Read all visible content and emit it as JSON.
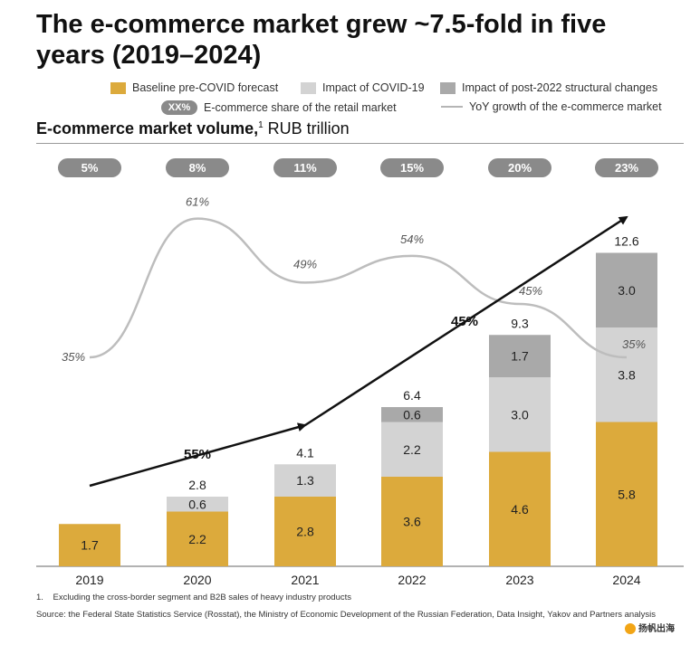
{
  "title": "The e-commerce market grew ~7.5-fold in five years (2019–2024)",
  "legend": {
    "baseline": "Baseline pre-COVID forecast",
    "covid": "Impact of COVID-19",
    "structural": "Impact of post-2022 structural changes",
    "share_marker": "XX%",
    "share": "E-commerce share of the retail market",
    "yoy": "YoY growth of the e-commerce market"
  },
  "subtitle": {
    "bold": "E-commerce market volume,",
    "sup": "1",
    "rest": " RUB trillion"
  },
  "colors": {
    "baseline": "#dcaa3c",
    "covid": "#d3d3d3",
    "structural": "#a9a9a9",
    "pill": "#8a8a8a",
    "yoy_line": "#bdbdbd",
    "arrow": "#111111"
  },
  "chart_data": {
    "type": "bar",
    "stacked": true,
    "categories": [
      "2019",
      "2020",
      "2021",
      "2022",
      "2023",
      "2024"
    ],
    "series": [
      {
        "name": "Baseline pre-COVID forecast",
        "values": [
          1.7,
          2.2,
          2.8,
          3.6,
          4.6,
          5.8
        ]
      },
      {
        "name": "Impact of COVID-19",
        "values": [
          0,
          0.6,
          1.3,
          2.2,
          3.0,
          3.8
        ]
      },
      {
        "name": "Impact of post-2022 structural changes",
        "values": [
          0,
          0,
          0,
          0.6,
          1.7,
          3.0
        ]
      }
    ],
    "totals": [
      "",
      "2.8",
      "4.1",
      "6.4",
      "9.3",
      "12.6"
    ],
    "segment_labels": [
      [
        "1.7",
        "",
        ""
      ],
      [
        "2.2",
        "0.6",
        ""
      ],
      [
        "2.8",
        "1.3",
        ""
      ],
      [
        "3.6",
        "2.2",
        "0.6"
      ],
      [
        "4.6",
        "3.0",
        "1.7"
      ],
      [
        "5.8",
        "3.8",
        "3.0"
      ]
    ],
    "ecommerce_share": [
      "5%",
      "8%",
      "11%",
      "15%",
      "20%",
      "23%"
    ],
    "yoy_growth": {
      "name": "YoY growth of the e-commerce market",
      "values": [
        35,
        61,
        49,
        54,
        45,
        35
      ],
      "labels": [
        "35%",
        "61%",
        "49%",
        "54%",
        "45%",
        "35%"
      ]
    },
    "cagr_annotations": [
      "55%",
      "45%"
    ],
    "ylim": [
      0,
      14
    ]
  },
  "footnotes": {
    "note1_num": "1.",
    "note1": "Excluding the cross-border segment and B2B sales of heavy industry products",
    "source": "Source: the Federal State Statistics Service (Rosstat), the Ministry of Economic Development of the Russian Federation, Data Insight, Yakov and Partners analysis"
  },
  "watermark": "扬帆出海"
}
